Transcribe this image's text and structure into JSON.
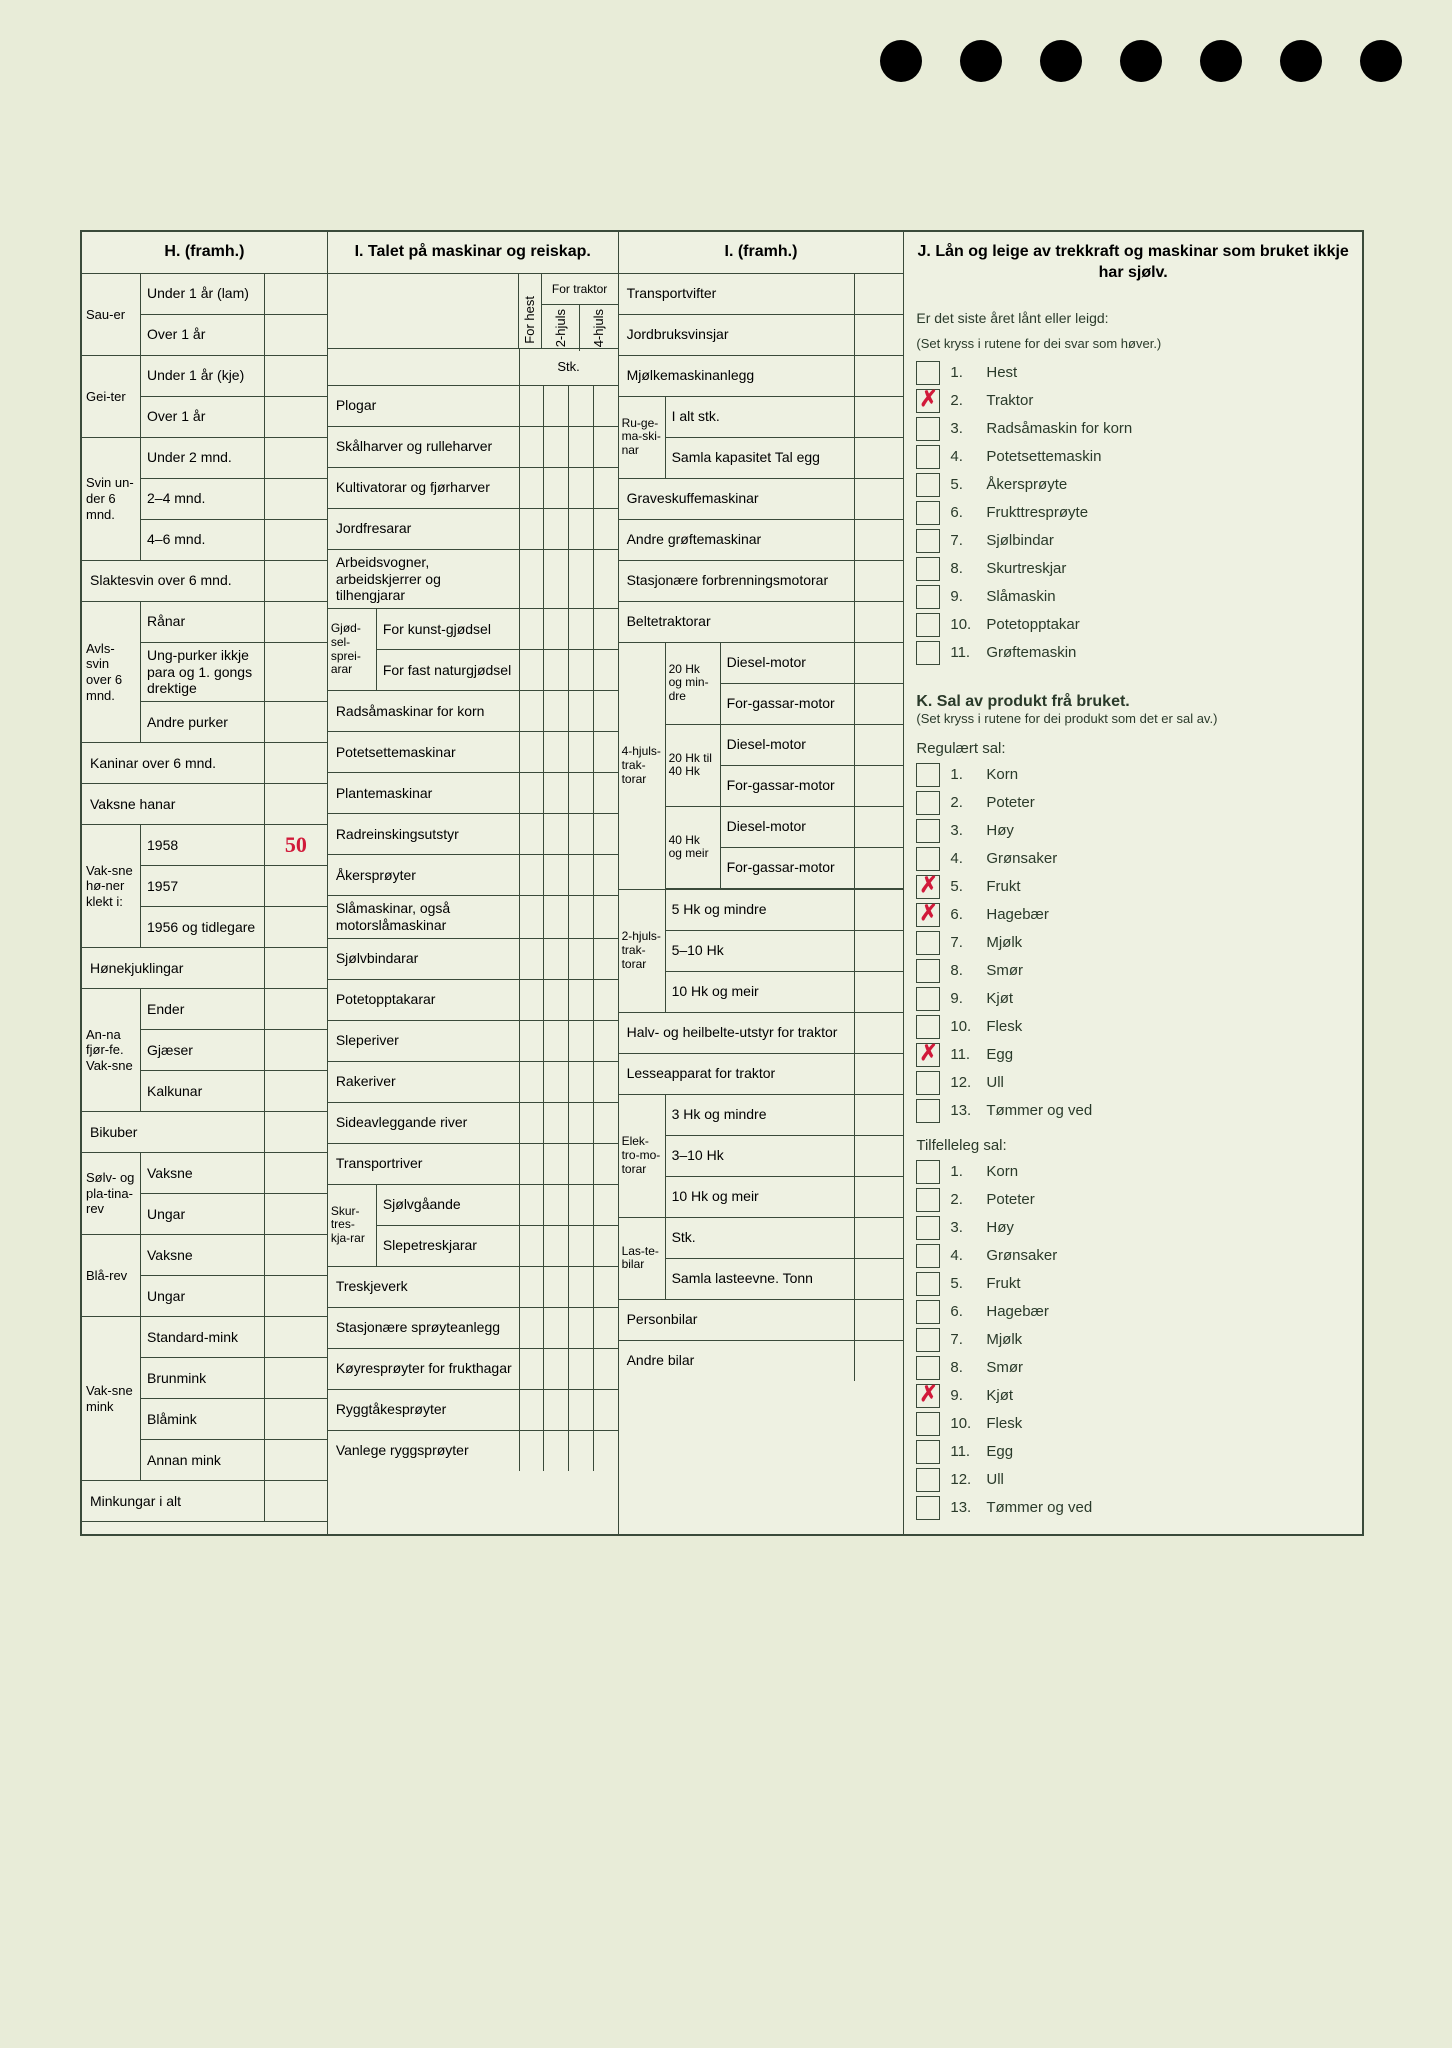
{
  "sectionH": {
    "title": "H. (framh.)",
    "groups": [
      {
        "side": "Sau-er",
        "rows": [
          {
            "label": "Under 1 år (lam)",
            "val": ""
          },
          {
            "label": "Over 1 år",
            "val": ""
          }
        ]
      },
      {
        "side": "Gei-ter",
        "rows": [
          {
            "label": "Under 1 år (kje)",
            "val": ""
          },
          {
            "label": "Over 1 år",
            "val": ""
          }
        ]
      },
      {
        "side": "Svin un-der 6 mnd.",
        "rows": [
          {
            "label": "Under 2 mnd.",
            "val": ""
          },
          {
            "label": "2–4 mnd.",
            "val": ""
          },
          {
            "label": "4–6 mnd.",
            "val": ""
          }
        ]
      },
      {
        "side": "",
        "full": true,
        "rows": [
          {
            "label": "Slaktesvin over 6 mnd.",
            "val": ""
          }
        ]
      },
      {
        "side": "Avls-svin over 6 mnd.",
        "rows": [
          {
            "label": "Rånar",
            "val": ""
          },
          {
            "label": "Ung-purker ikkje para og 1. gongs drektige",
            "val": ""
          },
          {
            "label": "Andre purker",
            "val": ""
          }
        ]
      },
      {
        "side": "",
        "full": true,
        "rows": [
          {
            "label": "Kaninar over 6 mnd.",
            "val": ""
          }
        ]
      },
      {
        "side": "",
        "full": true,
        "rows": [
          {
            "label": "Vaksne hanar",
            "val": ""
          }
        ]
      },
      {
        "side": "Vak-sne hø-ner klekt i:",
        "rows": [
          {
            "label": "1958",
            "val": "50",
            "hw": true
          },
          {
            "label": "1957",
            "val": ""
          },
          {
            "label": "1956 og tidlegare",
            "val": ""
          }
        ]
      },
      {
        "side": "",
        "full": true,
        "rows": [
          {
            "label": "Hønekjuklingar",
            "val": ""
          }
        ]
      },
      {
        "side": "An-na fjør-fe. Vak-sne",
        "rows": [
          {
            "label": "Ender",
            "val": ""
          },
          {
            "label": "Gjæser",
            "val": ""
          },
          {
            "label": "Kalkunar",
            "val": ""
          }
        ]
      },
      {
        "side": "",
        "full": true,
        "rows": [
          {
            "label": "Bikuber",
            "val": ""
          }
        ]
      },
      {
        "side": "Sølv- og pla-tina-rev",
        "rows": [
          {
            "label": "Vaksne",
            "val": ""
          },
          {
            "label": "Ungar",
            "val": ""
          }
        ]
      },
      {
        "side": "Blå-rev",
        "rows": [
          {
            "label": "Vaksne",
            "val": ""
          },
          {
            "label": "Ungar",
            "val": ""
          }
        ]
      },
      {
        "side": "Vak-sne mink",
        "rows": [
          {
            "label": "Standard-mink",
            "val": ""
          },
          {
            "label": "Brunmink",
            "val": ""
          },
          {
            "label": "Blåmink",
            "val": ""
          },
          {
            "label": "Annan mink",
            "val": ""
          }
        ]
      },
      {
        "side": "",
        "full": true,
        "rows": [
          {
            "label": "Minkungar i alt",
            "val": ""
          }
        ]
      }
    ]
  },
  "sectionI1": {
    "title": "I. Talet på maskinar og reiskap.",
    "colHest": "For hest",
    "colTraktor": "For traktor",
    "col2h": "2-hjuls",
    "col4h": "4-hjuls",
    "stk": "Stk.",
    "rows": [
      {
        "label": "Plogar"
      },
      {
        "label": "Skålharver og rulleharver"
      },
      {
        "label": "Kultivatorar og fjørharver"
      },
      {
        "label": "Jordfresarar"
      },
      {
        "label": "Arbeidsvogner, arbeidskjerrer og tilhengjarar"
      },
      {
        "side": "Gjød-sel-sprei-arar",
        "subrows": [
          {
            "label": "For kunst-gjødsel"
          },
          {
            "label": "For fast naturgjødsel"
          }
        ]
      },
      {
        "label": "Radsåmaskinar for korn"
      },
      {
        "label": "Potetsettemaskinar"
      },
      {
        "label": "Plantemaskinar"
      },
      {
        "label": "Radreinskingsutstyr"
      },
      {
        "label": "Åkersprøyter"
      },
      {
        "label": "Slåmaskinar, også motorslåmaskinar"
      },
      {
        "label": "Sjølvbindarar"
      },
      {
        "label": "Potetopptakarar"
      },
      {
        "label": "Sleperiver"
      },
      {
        "label": "Rakeriver"
      },
      {
        "label": "Sideavleggande river"
      },
      {
        "label": "Transportriver"
      },
      {
        "side": "Skur-tres-kja-rar",
        "subrows": [
          {
            "label": "Sjølvgåande"
          },
          {
            "label": "Slepetreskjarar"
          }
        ]
      },
      {
        "label": "Treskjeverk"
      },
      {
        "label": "Stasjonære sprøyteanlegg"
      },
      {
        "label": "Køyresprøyter for frukthagar"
      },
      {
        "label": "Ryggtåkesprøyter"
      },
      {
        "label": "Vanlege ryggsprøyter"
      }
    ]
  },
  "sectionI2": {
    "title": "I. (framh.)",
    "rows": [
      {
        "label": "Transportvifter"
      },
      {
        "label": "Jordbruksvinsjar"
      },
      {
        "label": "Mjølkemaskinanlegg"
      },
      {
        "side": "Ru-ge-ma-ski-nar",
        "subrows": [
          {
            "label": "I alt stk."
          },
          {
            "label": "Samla kapasitet Tal egg"
          }
        ]
      },
      {
        "label": "Graveskuffemaskinar"
      },
      {
        "label": "Andre grøftemaskinar"
      },
      {
        "label": "Stasjonære forbrenningsmotorar"
      },
      {
        "label": "Beltetraktorar"
      },
      {
        "side": "4-hjuls-trak-torar",
        "nested": [
          {
            "sub": "20 Hk og min-dre",
            "items": [
              {
                "label": "Diesel-motor"
              },
              {
                "label": "For-gassar-motor"
              }
            ]
          },
          {
            "sub": "20 Hk til 40 Hk",
            "items": [
              {
                "label": "Diesel-motor"
              },
              {
                "label": "For-gassar-motor"
              }
            ]
          },
          {
            "sub": "40 Hk og meir",
            "items": [
              {
                "label": "Diesel-motor"
              },
              {
                "label": "For-gassar-motor"
              }
            ]
          }
        ]
      },
      {
        "side": "2-hjuls-trak-torar",
        "subrows": [
          {
            "label": "5 Hk og mindre"
          },
          {
            "label": "5–10 Hk"
          },
          {
            "label": "10 Hk og meir"
          }
        ]
      },
      {
        "label": "Halv- og heilbelte-utstyr for traktor"
      },
      {
        "label": "Lesseapparat for traktor"
      },
      {
        "side": "Elek-tro-mo-torar",
        "subrows": [
          {
            "label": "3 Hk og mindre"
          },
          {
            "label": "3–10 Hk"
          },
          {
            "label": "10 Hk og meir"
          }
        ]
      },
      {
        "side": "Las-te-bilar",
        "subrows": [
          {
            "label": "Stk."
          },
          {
            "label": "Samla lasteevne. Tonn"
          }
        ]
      },
      {
        "label": "Personbilar"
      },
      {
        "label": "Andre bilar"
      }
    ]
  },
  "sectionJ": {
    "title": "J. Lån og leige av trekkraft og maskinar som bruket ikkje har sjølv.",
    "sub": "Er det siste året lånt eller leigd:",
    "note": "(Set kryss i rutene for dei svar som høver.)",
    "items": [
      {
        "n": "1.",
        "label": "Hest",
        "x": false
      },
      {
        "n": "2.",
        "label": "Traktor",
        "x": true
      },
      {
        "n": "3.",
        "label": "Radsåmaskin for korn",
        "x": false
      },
      {
        "n": "4.",
        "label": "Potetsettemaskin",
        "x": false
      },
      {
        "n": "5.",
        "label": "Åkersprøyte",
        "x": false
      },
      {
        "n": "6.",
        "label": "Frukttresprøyte",
        "x": false
      },
      {
        "n": "7.",
        "label": "Sjølbindar",
        "x": false
      },
      {
        "n": "8.",
        "label": "Skurtreskjar",
        "x": false
      },
      {
        "n": "9.",
        "label": "Slåmaskin",
        "x": false
      },
      {
        "n": "10.",
        "label": "Potetopptakar",
        "x": false
      },
      {
        "n": "11.",
        "label": "Grøftemaskin",
        "x": false
      }
    ]
  },
  "sectionK": {
    "title": "K. Sal av produkt frå bruket.",
    "note": "(Set kryss i rutene for dei produkt som det er sal av.)",
    "reg": {
      "title": "Regulært sal:",
      "items": [
        {
          "n": "1.",
          "label": "Korn",
          "x": false
        },
        {
          "n": "2.",
          "label": "Poteter",
          "x": false
        },
        {
          "n": "3.",
          "label": "Høy",
          "x": false
        },
        {
          "n": "4.",
          "label": "Grønsaker",
          "x": false
        },
        {
          "n": "5.",
          "label": "Frukt",
          "x": true
        },
        {
          "n": "6.",
          "label": "Hagebær",
          "x": true
        },
        {
          "n": "7.",
          "label": "Mjølk",
          "x": false
        },
        {
          "n": "8.",
          "label": "Smør",
          "x": false
        },
        {
          "n": "9.",
          "label": "Kjøt",
          "x": false
        },
        {
          "n": "10.",
          "label": "Flesk",
          "x": false
        },
        {
          "n": "11.",
          "label": "Egg",
          "x": true
        },
        {
          "n": "12.",
          "label": "Ull",
          "x": false
        },
        {
          "n": "13.",
          "label": "Tømmer og ved",
          "x": false
        }
      ]
    },
    "tilf": {
      "title": "Tilfelleleg sal:",
      "items": [
        {
          "n": "1.",
          "label": "Korn",
          "x": false
        },
        {
          "n": "2.",
          "label": "Poteter",
          "x": false
        },
        {
          "n": "3.",
          "label": "Høy",
          "x": false
        },
        {
          "n": "4.",
          "label": "Grønsaker",
          "x": false
        },
        {
          "n": "5.",
          "label": "Frukt",
          "x": false
        },
        {
          "n": "6.",
          "label": "Hagebær",
          "x": false
        },
        {
          "n": "7.",
          "label": "Mjølk",
          "x": false
        },
        {
          "n": "8.",
          "label": "Smør",
          "x": false
        },
        {
          "n": "9.",
          "label": "Kjøt",
          "x": true
        },
        {
          "n": "10.",
          "label": "Flesk",
          "x": false
        },
        {
          "n": "11.",
          "label": "Egg",
          "x": false
        },
        {
          "n": "12.",
          "label": "Ull",
          "x": false
        },
        {
          "n": "13.",
          "label": "Tømmer og ved",
          "x": false
        }
      ]
    }
  }
}
